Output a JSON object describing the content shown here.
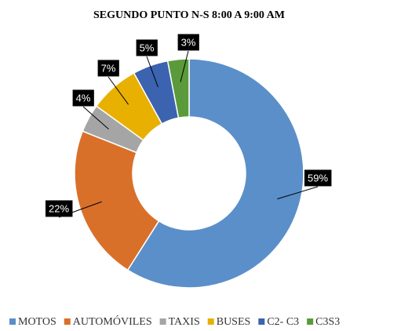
{
  "chart_data": {
    "type": "donut",
    "title": "SEGUNDO PUNTO N-S 8:00 A 9:00 AM",
    "categories": [
      "MOTOS",
      "AUTOMÓVILES",
      "TAXIS",
      "BUSES",
      "C2- C3",
      "C3S3"
    ],
    "values": [
      59,
      22,
      4,
      7,
      5,
      3
    ],
    "value_labels": [
      "59%",
      "22%",
      "4%",
      "7%",
      "5%",
      "3%"
    ],
    "colors": [
      "#5b8fc9",
      "#d9702a",
      "#a5a5a5",
      "#e8b000",
      "#3b63b0",
      "#5a9a3a"
    ],
    "legend": "bottom"
  }
}
